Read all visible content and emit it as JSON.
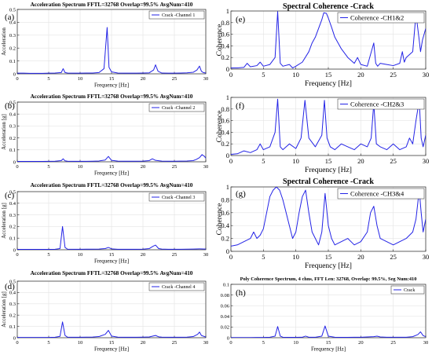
{
  "figure": {
    "trace_color": "#2323e6"
  },
  "chart_data": [
    {
      "id": "a",
      "panel": "(a)",
      "type": "line",
      "title": "Acceleration Spectrum FFTL=32768 Overlap=99.5% AvgNum=410",
      "xlabel": "Frequency [Hz]",
      "ylabel": "Acceleration",
      "legend": "Crack -Channel 1",
      "legend_loc": "top-right",
      "xlim": [
        0,
        30
      ],
      "ylim": [
        0,
        0.5
      ],
      "xticks": [
        "0",
        "5",
        "10",
        "15",
        "20",
        "25",
        "30"
      ],
      "yticks": [
        "0",
        "0.1",
        "0.2",
        "0.3",
        "0.4",
        "0.5"
      ],
      "grid": true,
      "x": [
        0,
        1,
        2,
        3,
        4,
        5,
        6,
        7,
        7.3,
        7.6,
        8,
        9,
        10,
        11,
        12,
        13,
        13.8,
        14.3,
        14.6,
        15,
        16,
        17,
        18,
        19,
        20,
        21,
        21.7,
        22,
        22.4,
        23,
        24,
        25,
        26,
        27,
        28,
        28.6,
        29,
        29.3,
        29.6,
        30
      ],
      "y": [
        0.005,
        0.005,
        0.004,
        0.004,
        0.004,
        0.005,
        0.006,
        0.01,
        0.04,
        0.01,
        0.006,
        0.005,
        0.005,
        0.006,
        0.006,
        0.01,
        0.04,
        0.36,
        0.05,
        0.015,
        0.006,
        0.005,
        0.005,
        0.005,
        0.006,
        0.008,
        0.03,
        0.07,
        0.02,
        0.006,
        0.005,
        0.005,
        0.006,
        0.008,
        0.012,
        0.03,
        0.06,
        0.02,
        0.01,
        0.006
      ]
    },
    {
      "id": "b",
      "panel": "(b)",
      "type": "line",
      "title": "Acceleration Spectrum FFTL=32768 Overlap=99.5% AvgNum=410",
      "xlabel": "Frequency [Hz]",
      "ylabel": "Acceleration [g]",
      "legend": "Crack -Channel 2",
      "legend_loc": "top-right",
      "xlim": [
        0,
        30
      ],
      "ylim": [
        0,
        0.5
      ],
      "xticks": [
        "0",
        "5",
        "10",
        "15",
        "20",
        "25",
        "30"
      ],
      "yticks": [
        "0",
        "0.1",
        "0.2",
        "0.3",
        "0.4",
        "0.5"
      ],
      "grid": true,
      "x": [
        0,
        1,
        2,
        3,
        4,
        5,
        6,
        7,
        7.3,
        7.6,
        8,
        9,
        10,
        11,
        12,
        13,
        14,
        14.5,
        15,
        16,
        17,
        18,
        19,
        20,
        21,
        21.5,
        22,
        23,
        24,
        25,
        26,
        27,
        28,
        28.5,
        29,
        29.4,
        29.8,
        30
      ],
      "y": [
        0.003,
        0.003,
        0.003,
        0.003,
        0.003,
        0.004,
        0.005,
        0.01,
        0.025,
        0.008,
        0.005,
        0.004,
        0.004,
        0.004,
        0.005,
        0.007,
        0.015,
        0.045,
        0.012,
        0.006,
        0.005,
        0.005,
        0.005,
        0.006,
        0.01,
        0.025,
        0.012,
        0.006,
        0.005,
        0.005,
        0.006,
        0.007,
        0.01,
        0.02,
        0.035,
        0.06,
        0.045,
        0.03
      ]
    },
    {
      "id": "c",
      "panel": "(c)",
      "type": "line",
      "title": "Acceleration Spectrum FFTL=32768 Overlap=99.5% AvgNum=410",
      "xlabel": "Frequency [Hz]",
      "ylabel": "Acceleration [g]",
      "legend": "Crack -Channel 3",
      "legend_loc": "top-right",
      "xlim": [
        0,
        30
      ],
      "ylim": [
        0,
        0.5
      ],
      "xticks": [
        "0",
        "5",
        "10",
        "15",
        "20",
        "25",
        "30"
      ],
      "yticks": [
        "0",
        "0.1",
        "0.2",
        "0.3",
        "0.4",
        "0.5"
      ],
      "grid": true,
      "x": [
        0,
        1,
        2,
        3,
        4,
        5,
        6,
        6.8,
        7.2,
        7.6,
        8,
        9,
        10,
        11,
        12,
        13,
        14,
        14.5,
        15,
        16,
        17,
        18,
        19,
        20,
        21,
        21.6,
        22,
        22.5,
        23,
        24,
        25,
        26,
        27,
        28,
        29,
        30
      ],
      "y": [
        0.003,
        0.003,
        0.003,
        0.003,
        0.003,
        0.003,
        0.004,
        0.01,
        0.2,
        0.02,
        0.005,
        0.004,
        0.004,
        0.005,
        0.005,
        0.006,
        0.01,
        0.02,
        0.008,
        0.004,
        0.004,
        0.004,
        0.004,
        0.005,
        0.01,
        0.03,
        0.04,
        0.01,
        0.006,
        0.004,
        0.004,
        0.004,
        0.005,
        0.006,
        0.008,
        0.006
      ]
    },
    {
      "id": "d",
      "panel": "(d)",
      "type": "line",
      "title": "Acceleration Spectrum FFTL=32768 Overlap=99.5% AvgNum=410",
      "xlabel": "Frequency [Hz]",
      "ylabel": "Acceleration [g]",
      "legend": "Crack -Channel 4",
      "legend_loc": "top-right",
      "xlim": [
        0,
        30
      ],
      "ylim": [
        0,
        0.5
      ],
      "xticks": [
        "0",
        "5",
        "10",
        "15",
        "20",
        "25",
        "30"
      ],
      "yticks": [
        "0",
        "0.1",
        "0.2",
        "0.3",
        "0.4",
        "0.5"
      ],
      "grid": true,
      "x": [
        0,
        1,
        2,
        3,
        4,
        5,
        6,
        6.8,
        7.2,
        7.6,
        8,
        9,
        10,
        11,
        12,
        13,
        14,
        14.5,
        15,
        16,
        17,
        18,
        19,
        20,
        21,
        21.6,
        22,
        22.5,
        23,
        24,
        25,
        26,
        27,
        28,
        28.7,
        29,
        29.3,
        30
      ],
      "y": [
        0.003,
        0.003,
        0.003,
        0.003,
        0.003,
        0.003,
        0.004,
        0.012,
        0.14,
        0.02,
        0.005,
        0.004,
        0.004,
        0.005,
        0.006,
        0.01,
        0.03,
        0.065,
        0.015,
        0.005,
        0.004,
        0.004,
        0.004,
        0.005,
        0.007,
        0.015,
        0.02,
        0.008,
        0.005,
        0.004,
        0.004,
        0.004,
        0.005,
        0.01,
        0.03,
        0.05,
        0.02,
        0.006
      ]
    },
    {
      "id": "e",
      "panel": "(e)",
      "type": "line",
      "title": "Spectral Coherence -Crack",
      "xlabel": "Frequency [Hz]",
      "ylabel": "Coherence",
      "legend": "Coherence -CH1&2",
      "legend_loc": "top-right",
      "xlim": [
        0,
        30
      ],
      "ylim": [
        0,
        1
      ],
      "xticks": [
        "0",
        "5",
        "10",
        "15",
        "20",
        "25",
        "30"
      ],
      "yticks": [
        "0",
        "0.2",
        "0.4",
        "0.6",
        "0.8",
        "1"
      ],
      "grid": true,
      "x": [
        0,
        1,
        2,
        2.5,
        3,
        4,
        4.5,
        5,
        6,
        6.8,
        7.2,
        7.6,
        8,
        9,
        9.5,
        10,
        11,
        12,
        12.5,
        13,
        13.5,
        14,
        14.3,
        14.7,
        15,
        15.5,
        16,
        17,
        18,
        19,
        19.5,
        20,
        21,
        21.5,
        22,
        22.3,
        22.6,
        23,
        24,
        25,
        26,
        26.4,
        26.7,
        27,
        28,
        28.5,
        29,
        29.2,
        29.5,
        30
      ],
      "y": [
        0.02,
        0.02,
        0.03,
        0.1,
        0.04,
        0.06,
        0.12,
        0.05,
        0.08,
        0.2,
        0.99,
        0.1,
        0.05,
        0.08,
        0.02,
        0.05,
        0.12,
        0.3,
        0.45,
        0.55,
        0.7,
        0.85,
        0.97,
        0.96,
        0.88,
        0.72,
        0.55,
        0.35,
        0.2,
        0.1,
        0.2,
        0.08,
        0.05,
        0.25,
        0.45,
        0.1,
        0.05,
        0.1,
        0.08,
        0.06,
        0.1,
        0.3,
        0.12,
        0.2,
        0.3,
        0.95,
        0.5,
        0.3,
        0.5,
        0.7
      ]
    },
    {
      "id": "f",
      "panel": "(f)",
      "type": "line",
      "title": "",
      "xlabel": "Frequency [Hz]",
      "ylabel": "Coherence",
      "legend": "Coherence -CH2&3",
      "legend_loc": "top-right",
      "xlim": [
        0,
        30
      ],
      "ylim": [
        0,
        1
      ],
      "xticks": [
        "0",
        "5",
        "10",
        "15",
        "20",
        "25",
        "30"
      ],
      "yticks": [
        "0",
        "0.2",
        "0.4",
        "0.6",
        "0.8",
        "1"
      ],
      "grid": true,
      "x": [
        0,
        1,
        2,
        3,
        4,
        4.5,
        5,
        6,
        6.8,
        7.2,
        7.6,
        8,
        9,
        10,
        10.8,
        11.4,
        12,
        13,
        14,
        14.4,
        14.8,
        15.3,
        16,
        17,
        18,
        19,
        20,
        21,
        21.6,
        22,
        22.4,
        23,
        24,
        25,
        26,
        27,
        27.5,
        28,
        28.5,
        29,
        29.3,
        29.6,
        30
      ],
      "y": [
        0.02,
        0.03,
        0.08,
        0.05,
        0.1,
        0.2,
        0.1,
        0.15,
        0.4,
        0.97,
        0.15,
        0.1,
        0.2,
        0.12,
        0.3,
        0.95,
        0.3,
        0.15,
        0.35,
        0.95,
        0.3,
        0.15,
        0.1,
        0.2,
        0.15,
        0.1,
        0.2,
        0.15,
        0.3,
        0.9,
        0.2,
        0.15,
        0.1,
        0.2,
        0.1,
        0.15,
        0.3,
        0.2,
        0.6,
        0.95,
        0.3,
        0.15,
        0.35
      ]
    },
    {
      "id": "g",
      "panel": "(g)",
      "type": "line",
      "title": "Spectral Coherence -Crack",
      "xlabel": "Frequency [Hz]",
      "ylabel": "Coherence",
      "legend": "Coherence -CH3&4",
      "legend_loc": "top-right",
      "xlim": [
        0,
        30
      ],
      "ylim": [
        0,
        1
      ],
      "xticks": [
        "0",
        "5",
        "10",
        "15",
        "20",
        "25",
        "30"
      ],
      "yticks": [
        "0",
        "0.2",
        "0.4",
        "0.6",
        "0.8",
        "1"
      ],
      "grid": true,
      "x": [
        0,
        1,
        2,
        3,
        3.5,
        4,
        4.5,
        5,
        5.5,
        6,
        6.5,
        7,
        7.5,
        8,
        8.5,
        9,
        9.5,
        10,
        10.5,
        11,
        11.5,
        12,
        12.5,
        13,
        13.5,
        14,
        14.5,
        15,
        15.5,
        16,
        17,
        18,
        19,
        20,
        21,
        21.5,
        22,
        22.5,
        23,
        24,
        25,
        26,
        27,
        28,
        28.5,
        29,
        29.3,
        29.6,
        30
      ],
      "y": [
        0.08,
        0.1,
        0.15,
        0.2,
        0.3,
        0.2,
        0.25,
        0.35,
        0.6,
        0.85,
        0.95,
        1.0,
        0.95,
        0.8,
        0.6,
        0.4,
        0.2,
        0.3,
        0.6,
        0.85,
        0.95,
        0.6,
        0.3,
        0.2,
        0.1,
        0.3,
        0.9,
        0.4,
        0.2,
        0.1,
        0.15,
        0.2,
        0.1,
        0.15,
        0.3,
        0.6,
        0.7,
        0.4,
        0.2,
        0.15,
        0.1,
        0.15,
        0.2,
        0.3,
        0.5,
        0.95,
        0.6,
        0.3,
        0.5
      ]
    },
    {
      "id": "h",
      "panel": "(h)",
      "type": "line",
      "title": "Poly Coherence Spectrum, 4 chns, FFT Len: 32768, Overlap: 99.5%, Seg Num:410",
      "xlabel": "Frequency [Hz]",
      "ylabel": "",
      "legend": "Crack",
      "legend_loc": "top-right",
      "xlim": [
        0,
        30
      ],
      "ylim": [
        0,
        0.1
      ],
      "xticks": [
        "0",
        "5",
        "10",
        "15",
        "20",
        "25",
        "30"
      ],
      "yticks": [
        "0",
        "0.02",
        "0.04",
        "0.06",
        "0.08",
        "0.1"
      ],
      "grid": true,
      "x": [
        0,
        1,
        2,
        3,
        4,
        5,
        6,
        6.8,
        7.2,
        7.6,
        8,
        9,
        10,
        11,
        11.5,
        12,
        13,
        14,
        14.5,
        15,
        16,
        17,
        18,
        19,
        20,
        21,
        22,
        22.5,
        23,
        24,
        25,
        26,
        27,
        28,
        28.8,
        29.2,
        29.6,
        30
      ],
      "y": [
        0.0003,
        0.0003,
        0.0003,
        0.0004,
        0.0005,
        0.0006,
        0.001,
        0.003,
        0.021,
        0.003,
        0.001,
        0.0008,
        0.0008,
        0.001,
        0.003,
        0.001,
        0.001,
        0.003,
        0.022,
        0.003,
        0.001,
        0.0008,
        0.0008,
        0.0009,
        0.001,
        0.0015,
        0.002,
        0.003,
        0.0015,
        0.001,
        0.001,
        0.001,
        0.001,
        0.002,
        0.006,
        0.011,
        0.004,
        0.002
      ]
    }
  ]
}
